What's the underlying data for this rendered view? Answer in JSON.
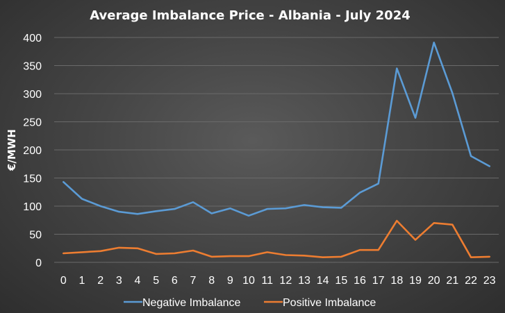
{
  "chart_data": {
    "type": "line",
    "title": "Average Imbalance Price - Albania - July 2024",
    "xlabel": "",
    "ylabel": "€/MWH",
    "categories": [
      "0",
      "1",
      "2",
      "3",
      "4",
      "5",
      "6",
      "7",
      "8",
      "9",
      "10",
      "11",
      "12",
      "13",
      "14",
      "15",
      "16",
      "17",
      "18",
      "19",
      "20",
      "21",
      "22",
      "23"
    ],
    "ylim": [
      0,
      400
    ],
    "yticks": [
      "0",
      "50",
      "100",
      "150",
      "200",
      "250",
      "300",
      "350",
      "400"
    ],
    "grid": true,
    "legend_position": "bottom",
    "series": [
      {
        "name": "Negative Imbalance",
        "color": "#5b9bd5",
        "values": [
          143,
          113,
          100,
          90,
          86,
          91,
          95,
          107,
          87,
          96,
          83,
          95,
          96,
          102,
          98,
          97,
          124,
          140,
          345,
          257,
          391,
          301,
          189,
          171
        ]
      },
      {
        "name": "Positive Imbalance",
        "color": "#ed7d31",
        "values": [
          16,
          18,
          20,
          26,
          25,
          15,
          16,
          21,
          10,
          11,
          11,
          18,
          13,
          12,
          9,
          10,
          22,
          22,
          74,
          40,
          70,
          67,
          9,
          10
        ]
      }
    ]
  }
}
